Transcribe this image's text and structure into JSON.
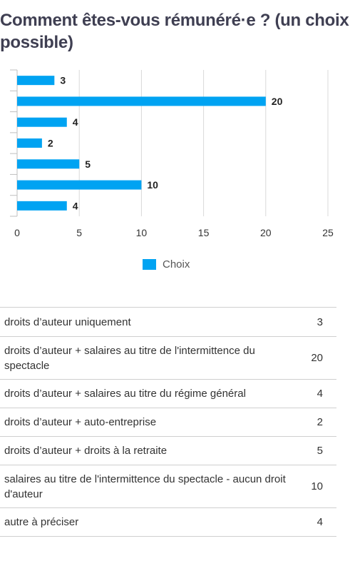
{
  "title": "Comment êtes-vous rémunéré·e ? (un choix possible)",
  "chart_data": {
    "type": "bar",
    "orientation": "horizontal",
    "categories": [
      "droits d’auteur uniquement",
      "droits d’auteur + salaires au titre de l'intermittence du spectacle",
      "droits d’auteur + salaires au titre du régime général",
      "droits d’auteur + auto-entreprise",
      "droits d’auteur + droits à la retraite",
      "salaires au titre de l'intermittence du spectacle - aucun droit d'auteur",
      "autre à préciser"
    ],
    "series": [
      {
        "name": "Choix",
        "values": [
          3,
          20,
          4,
          2,
          5,
          10,
          4
        ]
      }
    ],
    "xlim": [
      0,
      25
    ],
    "xticks": [
      "0",
      "5",
      "10",
      "15",
      "20",
      "25"
    ],
    "grid": true,
    "legend": "bottom",
    "bar_color": "#00a3f2",
    "data_labels": true
  },
  "legend": {
    "label": "Choix"
  },
  "table": {
    "rows": [
      {
        "label": "droits d’auteur uniquement",
        "count": "3"
      },
      {
        "label": "droits d’auteur + salaires au titre de l'intermittence du spectacle",
        "count": "20"
      },
      {
        "label": "droits d’auteur + salaires au titre du régime général",
        "count": "4"
      },
      {
        "label": "droits d’auteur + auto-entreprise",
        "count": "2"
      },
      {
        "label": "droits d’auteur + droits à la retraite",
        "count": "5"
      },
      {
        "label": "salaires au titre de l'intermittence du spectacle - aucun droit d'auteur",
        "count": "10"
      },
      {
        "label": "autre à préciser",
        "count": "4"
      }
    ]
  }
}
